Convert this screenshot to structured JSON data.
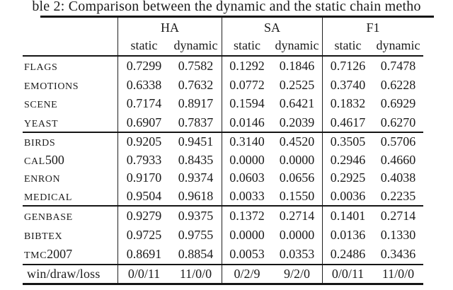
{
  "caption": "ble 2: Comparison between the dynamic and the static chain metho",
  "colors": {
    "text": "#1b1b1b",
    "rule": "#151515",
    "background": "#ffffff"
  },
  "table": {
    "column_groups": [
      "HA",
      "SA",
      "F1"
    ],
    "subheaders": [
      "static",
      "dynamic"
    ],
    "groups": [
      {
        "rows": [
          {
            "label_sc": "flags",
            "label_num": "",
            "values": [
              "0.7299",
              "0.7582",
              "0.1292",
              "0.1846",
              "0.7126",
              "0.7478"
            ]
          },
          {
            "label_sc": "emotions",
            "label_num": "",
            "values": [
              "0.6338",
              "0.7632",
              "0.0772",
              "0.2525",
              "0.3740",
              "0.6228"
            ]
          },
          {
            "label_sc": "scene",
            "label_num": "",
            "values": [
              "0.7174",
              "0.8917",
              "0.1594",
              "0.6421",
              "0.1832",
              "0.6929"
            ]
          },
          {
            "label_sc": "yeast",
            "label_num": "",
            "values": [
              "0.6907",
              "0.7837",
              "0.0146",
              "0.2039",
              "0.4617",
              "0.6270"
            ]
          }
        ]
      },
      {
        "rows": [
          {
            "label_sc": "birds",
            "label_num": "",
            "values": [
              "0.9205",
              "0.9451",
              "0.3140",
              "0.4520",
              "0.3505",
              "0.5706"
            ]
          },
          {
            "label_sc": "cal",
            "label_num": "500",
            "values": [
              "0.7933",
              "0.8435",
              "0.0000",
              "0.0000",
              "0.2946",
              "0.4660"
            ]
          },
          {
            "label_sc": "enron",
            "label_num": "",
            "values": [
              "0.9170",
              "0.9374",
              "0.0603",
              "0.0656",
              "0.2925",
              "0.4038"
            ]
          },
          {
            "label_sc": "medical",
            "label_num": "",
            "values": [
              "0.9504",
              "0.9618",
              "0.0033",
              "0.1550",
              "0.0036",
              "0.2235"
            ]
          }
        ]
      },
      {
        "rows": [
          {
            "label_sc": "genbase",
            "label_num": "",
            "values": [
              "0.9279",
              "0.9375",
              "0.1372",
              "0.2714",
              "0.1401",
              "0.2714"
            ]
          },
          {
            "label_sc": "bibtex",
            "label_num": "",
            "values": [
              "0.9725",
              "0.9755",
              "0.0000",
              "0.0000",
              "0.0136",
              "0.1330"
            ]
          },
          {
            "label_sc": "tmc",
            "label_num": "2007",
            "values": [
              "0.8691",
              "0.8854",
              "0.0053",
              "0.0353",
              "0.2486",
              "0.3436"
            ]
          }
        ]
      }
    ],
    "summary": {
      "label": "win/draw/loss",
      "values": [
        "0/0/11",
        "11/0/0",
        "0/2/9",
        "9/2/0",
        "0/0/11",
        "11/0/0"
      ]
    }
  }
}
